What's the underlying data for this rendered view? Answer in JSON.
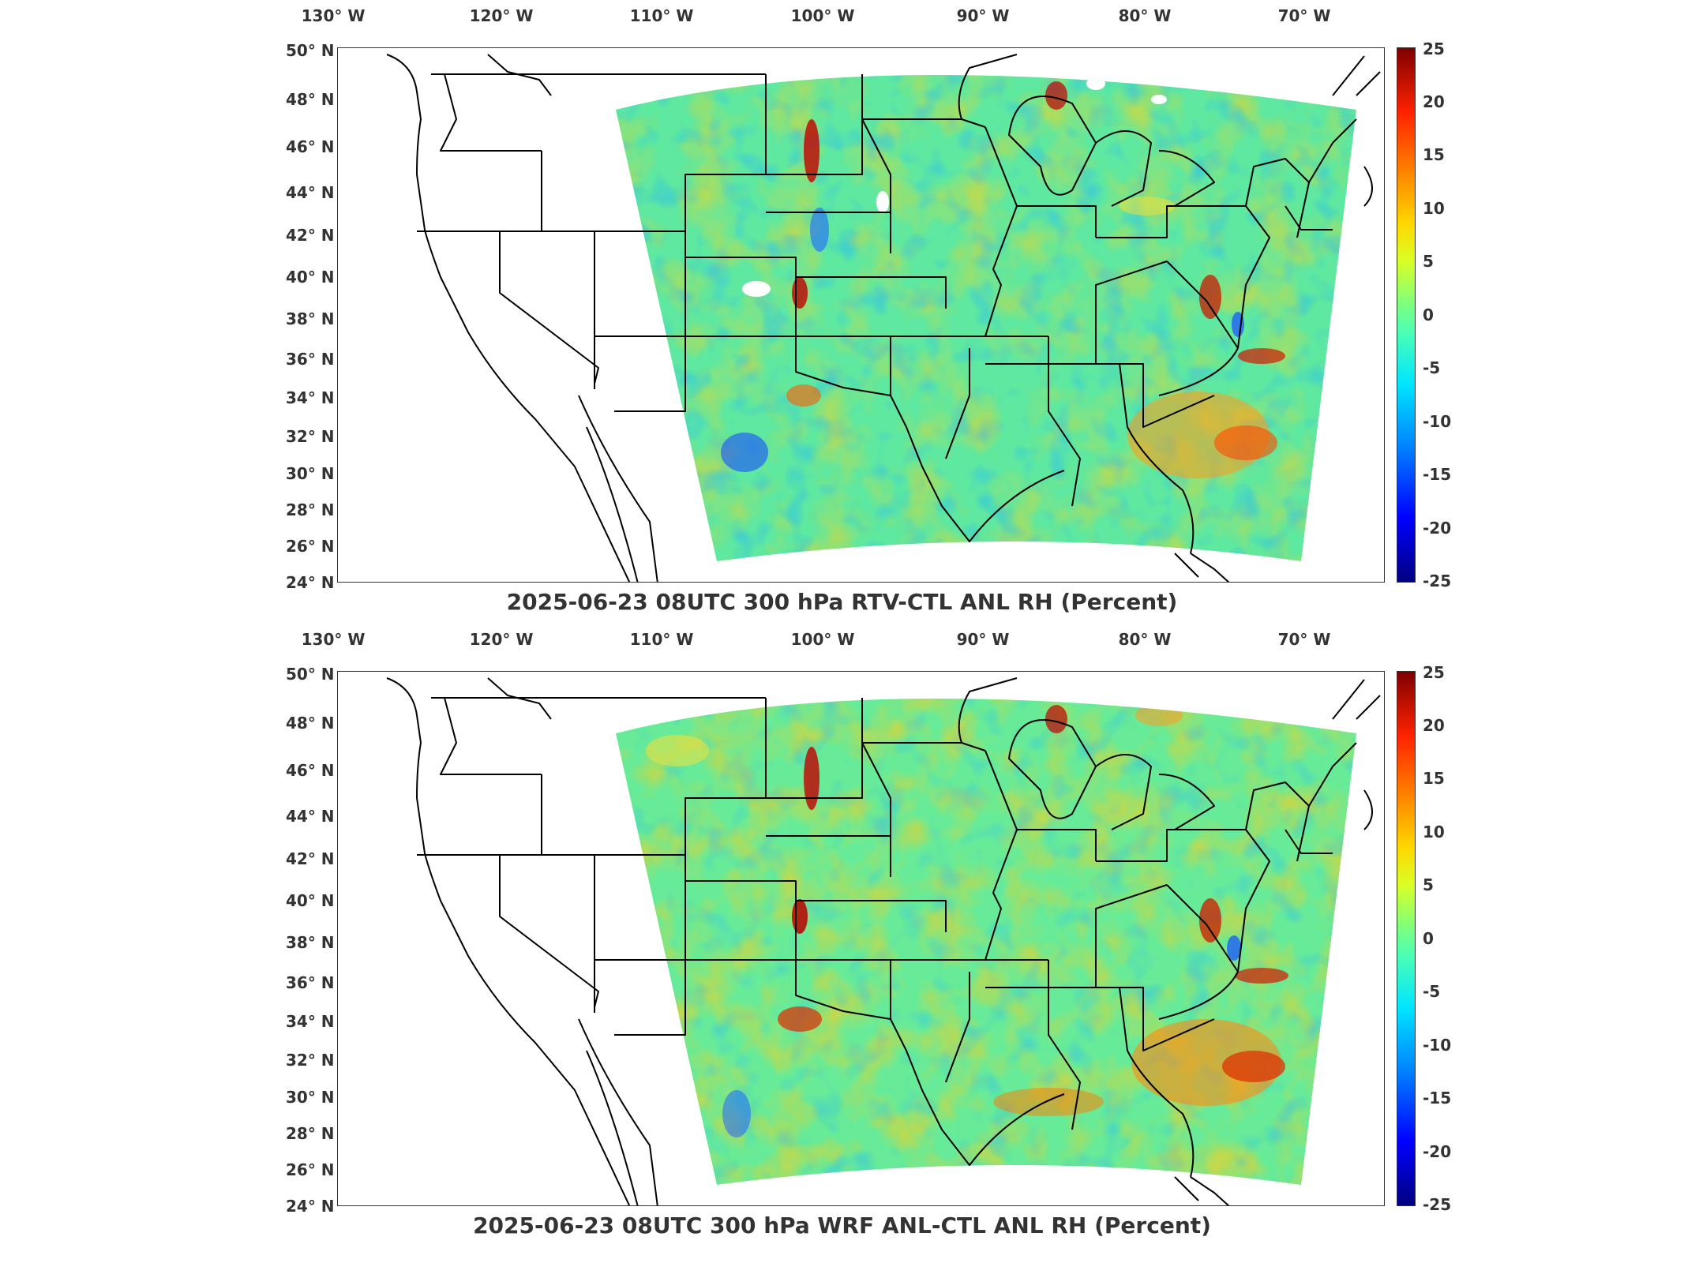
{
  "panels": [
    {
      "title": "2025-06-23 08UTC 300 hPa RTV-CTL ANL RH (Percent)",
      "longitudes": [
        "130° W",
        "120° W",
        "110° W",
        "100° W",
        "90° W",
        "80° W",
        "70° W"
      ],
      "latitudes": [
        "50° N",
        "48° N",
        "46° N",
        "44° N",
        "42° N",
        "40° N",
        "38° N",
        "36° N",
        "34° N",
        "32° N",
        "30° N",
        "28° N",
        "26° N",
        "24° N"
      ],
      "colorbar_ticks": [
        "25",
        "20",
        "15",
        "10",
        "5",
        "0",
        "-5",
        "-10",
        "-15",
        "-20",
        "-25"
      ]
    },
    {
      "title": "2025-06-23 08UTC 300 hPa WRF ANL-CTL ANL RH (Percent)",
      "longitudes": [
        "130° W",
        "120° W",
        "110° W",
        "100° W",
        "90° W",
        "80° W",
        "70° W"
      ],
      "latitudes": [
        "50° N",
        "48° N",
        "46° N",
        "44° N",
        "42° N",
        "40° N",
        "38° N",
        "36° N",
        "34° N",
        "32° N",
        "30° N",
        "28° N",
        "26° N",
        "24° N"
      ],
      "colorbar_ticks": [
        "25",
        "20",
        "15",
        "10",
        "5",
        "0",
        "-5",
        "-10",
        "-15",
        "-20",
        "-25"
      ]
    }
  ],
  "colorbar_range": [
    -25,
    25
  ],
  "colors": {
    "background_field": "#5fe8a0",
    "positive_high": "#b30000",
    "negative_low": "#0000c0"
  }
}
